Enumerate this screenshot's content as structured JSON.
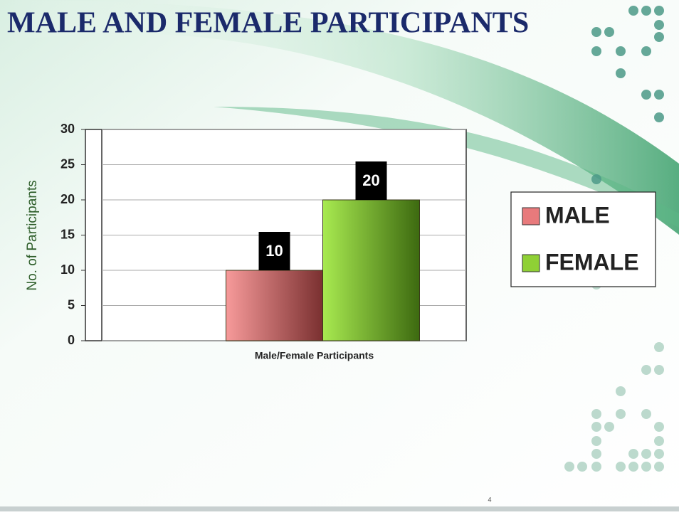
{
  "chart_data": {
    "type": "bar",
    "title": "MALE AND FEMALE PARTICIPANTS",
    "y_label": "No. of Participants",
    "categories": [
      "Male/Female Participants"
    ],
    "series": [
      {
        "name": "MALE",
        "color": "#e87a7c",
        "values": [
          10
        ]
      },
      {
        "name": "FEMALE",
        "color": "#8fd035",
        "values": [
          20
        ]
      }
    ],
    "ylim": [
      0,
      30
    ],
    "yticks": [
      0,
      5,
      10,
      15,
      20,
      25,
      30
    ],
    "grid": true,
    "legend": "right"
  },
  "slide_number": "4"
}
